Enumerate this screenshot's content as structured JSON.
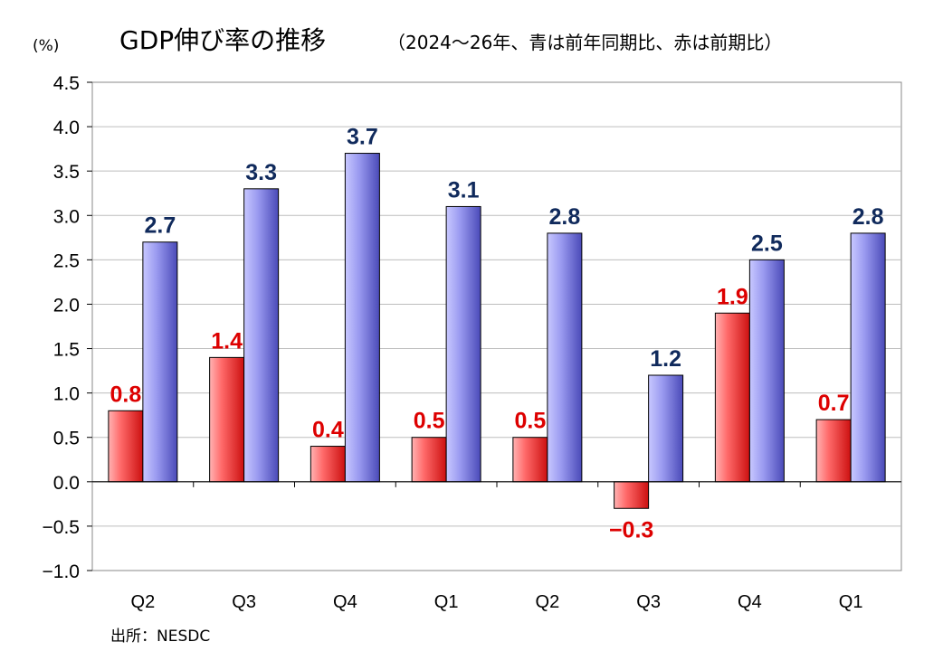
{
  "chart_data": {
    "type": "bar",
    "title": "GDP伸び率の推移",
    "subtitle": "（2024～26年、青は前年同期比、赤は前期比）",
    "unit_label": "(%)",
    "categories": [
      "Q2",
      "Q3",
      "Q4",
      "Q1",
      "Q2",
      "Q3",
      "Q4",
      "Q1"
    ],
    "series": [
      {
        "name": "前期比",
        "color": "#ee2222",
        "values": [
          0.8,
          1.4,
          0.4,
          0.5,
          0.5,
          -0.3,
          1.9,
          0.7
        ],
        "labels": [
          "0.8",
          "1.4",
          "0.4",
          "0.5",
          "0.5",
          "−0.3",
          "1.9",
          "0.7"
        ],
        "label_color": "#dd0000"
      },
      {
        "name": "前年同期比",
        "color": "#8888ee",
        "values": [
          2.7,
          3.3,
          3.7,
          3.1,
          2.8,
          1.2,
          2.5,
          2.8
        ],
        "labels": [
          "2.7",
          "3.3",
          "3.7",
          "3.1",
          "2.8",
          "1.2",
          "2.5",
          "2.8"
        ],
        "label_color": "#102a5c"
      }
    ],
    "yticks": [
      "4.5",
      "4.0",
      "3.5",
      "3.0",
      "2.5",
      "2.0",
      "1.5",
      "1.0",
      "0.5",
      "0.0",
      "−0.5",
      "−1.0"
    ],
    "ylim": [
      -1.0,
      4.5
    ],
    "grid": true,
    "source": "出所：NESDC"
  }
}
